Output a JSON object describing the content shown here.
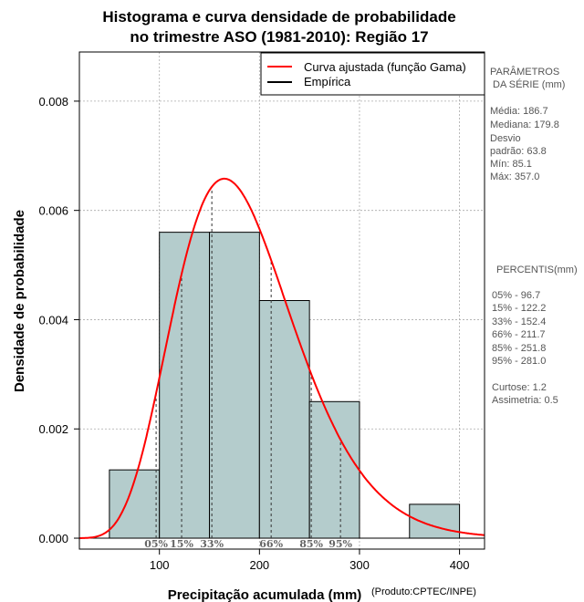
{
  "chart_data": {
    "type": "bar",
    "title_line1": "Histograma e curva densidade de probabilidade",
    "title_line2": "no trimestre ASO (1981-2010): Região 17",
    "xlabel": "Precipitação acumulada (mm)",
    "ylabel": "Densidade de probabilidade",
    "credit": "(Produto:CPTEC/INPE)",
    "xlim": [
      20,
      425
    ],
    "ylim": [
      -0.0002,
      0.0089
    ],
    "x_ticks": [
      {
        "value": 100,
        "label": "100"
      },
      {
        "value": 200,
        "label": "200"
      },
      {
        "value": 300,
        "label": "300"
      },
      {
        "value": 400,
        "label": "400"
      }
    ],
    "y_ticks": [
      {
        "value": 0.0,
        "label": "0.000"
      },
      {
        "value": 0.002,
        "label": "0.002"
      },
      {
        "value": 0.004,
        "label": "0.004"
      },
      {
        "value": 0.006,
        "label": "0.006"
      },
      {
        "value": 0.008,
        "label": "0.008"
      }
    ],
    "bins": [
      {
        "start": 50,
        "end": 100,
        "density": 0.00125
      },
      {
        "start": 100,
        "end": 150,
        "density": 0.0056
      },
      {
        "start": 150,
        "end": 200,
        "density": 0.0056
      },
      {
        "start": 200,
        "end": 250,
        "density": 0.00435
      },
      {
        "start": 250,
        "end": 300,
        "density": 0.0025
      },
      {
        "start": 350,
        "end": 400,
        "density": 0.00062
      }
    ],
    "gamma_fit": {
      "mean": 186.7,
      "sd": 63.8
    },
    "percentile_markers": [
      {
        "value": 96.7,
        "label": "05%"
      },
      {
        "value": 122.2,
        "label": "15%"
      },
      {
        "value": 152.4,
        "label": "33%"
      },
      {
        "value": 211.7,
        "label": "66%"
      },
      {
        "value": 251.8,
        "label": "85%"
      },
      {
        "value": 281.0,
        "label": "95%"
      }
    ],
    "legend": [
      {
        "label": "Curva ajustada (função Gama)",
        "color": "#ff0000"
      },
      {
        "label": "Empírica",
        "color": "#000000"
      }
    ],
    "colors": {
      "bar_fill": "#b4cccc",
      "curve": "#ff0000",
      "grid": "#aaaaaa"
    }
  },
  "side_panel": {
    "params_title_1": "PARÂMETROS",
    "params_title_2": "DA SÉRIE (mm)",
    "stats": [
      "Média:  186.7",
      "Mediana:  179.8",
      "Desvio",
      "padrão:  63.8",
      "Mín:  85.1",
      "Máx:  357.0"
    ],
    "percentis_title": "PERCENTIS(mm)",
    "percentis": [
      "05% -   96.7",
      "15% -   122.2",
      "33% -   152.4",
      "66% -   211.7",
      "85% -   251.8",
      "95% -   281.0"
    ],
    "curtose": "Curtose:  1.2",
    "assimetria": "Assimetria:  0.5"
  }
}
